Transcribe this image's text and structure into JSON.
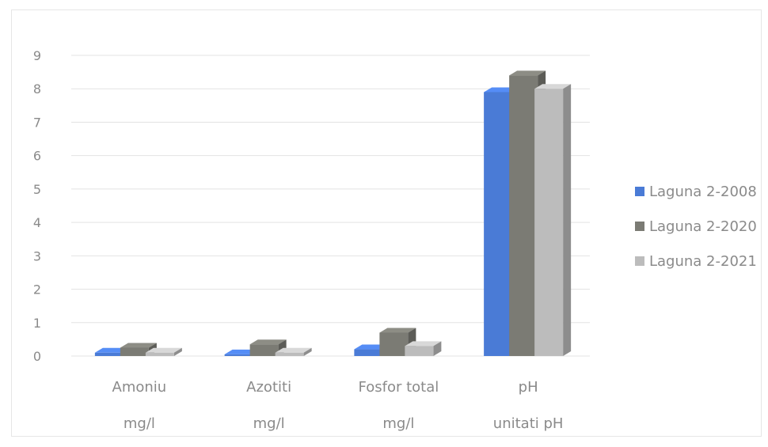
{
  "chart_data": {
    "type": "bar",
    "categories": [
      "Amoniu",
      "Azotiti",
      "Fosfor total",
      "pH"
    ],
    "units": [
      "mg/l",
      "mg/l",
      "mg/l",
      "unitati pH"
    ],
    "series": [
      {
        "name": "Laguna 2-2008",
        "values": [
          0.1,
          0.05,
          0.2,
          7.9
        ],
        "color": "#4a7bd6"
      },
      {
        "name": "Laguna 2-2020",
        "values": [
          0.25,
          0.35,
          0.7,
          8.4
        ],
        "color": "#7b7b74"
      },
      {
        "name": "Laguna 2-2021",
        "values": [
          0.1,
          0.1,
          0.3,
          8.0
        ],
        "color": "#bcbcbc"
      }
    ],
    "ylim": [
      0,
      9
    ],
    "yticks": [
      "0",
      "1",
      "2",
      "3",
      "4",
      "5",
      "6",
      "7",
      "8",
      "9"
    ],
    "grid": true,
    "legend_position": "right",
    "title": "",
    "xlabel": "",
    "ylabel": ""
  }
}
